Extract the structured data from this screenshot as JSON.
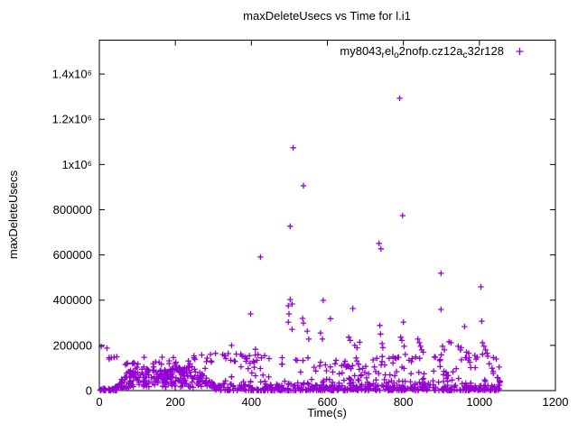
{
  "window": {
    "background": "#ffffff"
  },
  "chart_data": {
    "type": "scatter",
    "title": "maxDeleteUsecs vs Time for l.i1",
    "xlabel": "Time(s)",
    "ylabel": "maxDeleteUsecs",
    "xlim": [
      0,
      1200
    ],
    "ylim": [
      0,
      1550000
    ],
    "grid": false,
    "legend_position": "top-right-inside",
    "marker": "plus",
    "marker_color": "#9400D3",
    "border_color": "#000000",
    "x_ticks": {
      "values": [
        0,
        200,
        400,
        600,
        800,
        1000,
        1200
      ],
      "labels": [
        "0",
        "200",
        "400",
        "600",
        "800",
        "1000",
        "1200"
      ]
    },
    "y_ticks": {
      "values": [
        0,
        200000,
        400000,
        600000,
        800000,
        1000000,
        1200000,
        1400000
      ],
      "labels": [
        "0",
        "200000",
        "400000",
        "600000",
        "800000",
        "1x10⁶",
        "1.2x10⁶",
        "1.4x10⁶"
      ]
    },
    "series": [
      {
        "name": "my8043_rel_o2nofp.cz12a_c32r128",
        "label_segments": [
          {
            "text": "my8043",
            "sub": false
          },
          {
            "text": "r",
            "sub": true
          },
          {
            "text": "el",
            "sub": false
          },
          {
            "text": "o",
            "sub": true
          },
          {
            "text": "2nofp.cz12a",
            "sub": false
          },
          {
            "text": "c",
            "sub": true
          },
          {
            "text": "32r128",
            "sub": false
          }
        ],
        "notable_points": [
          [
            5,
            195000
          ],
          [
            20,
            188000
          ],
          [
            348,
            200000
          ],
          [
            398,
            339000
          ],
          [
            424,
            591000
          ],
          [
            497,
            375000
          ],
          [
            499,
            339000
          ],
          [
            497,
            303000
          ],
          [
            502,
            403000
          ],
          [
            502,
            727000
          ],
          [
            507,
            383000
          ],
          [
            507,
            271000
          ],
          [
            510,
            1074000
          ],
          [
            535,
            319000
          ],
          [
            537,
            299000
          ],
          [
            537,
            906000
          ],
          [
            547,
            263000
          ],
          [
            551,
            228000
          ],
          [
            582,
            255000
          ],
          [
            587,
            228000
          ],
          [
            589,
            399000
          ],
          [
            608,
            318000
          ],
          [
            656,
            236000
          ],
          [
            660,
            222000
          ],
          [
            667,
            363000
          ],
          [
            672,
            200000
          ],
          [
            678,
            189000
          ],
          [
            685,
            214000
          ],
          [
            736,
            651000
          ],
          [
            738,
            288000
          ],
          [
            740,
            250000
          ],
          [
            741,
            627000
          ],
          [
            744,
            208000
          ],
          [
            746,
            190000
          ],
          [
            790,
            1293000
          ],
          [
            793,
            236000
          ],
          [
            796,
            222000
          ],
          [
            798,
            774000
          ],
          [
            800,
            303000
          ],
          [
            802,
            196000
          ],
          [
            805,
            160000
          ],
          [
            838,
            228000
          ],
          [
            842,
            212000
          ],
          [
            845,
            196000
          ],
          [
            848,
            180000
          ],
          [
            852,
            170000
          ],
          [
            899,
            519000
          ],
          [
            899,
            359000
          ],
          [
            903,
            196000
          ],
          [
            908,
            180000
          ],
          [
            920,
            216000
          ],
          [
            925,
            212000
          ],
          [
            944,
            196000
          ],
          [
            950,
            180000
          ],
          [
            952,
            190000
          ],
          [
            961,
            283000
          ],
          [
            966,
            170000
          ],
          [
            972,
            165000
          ],
          [
            1004,
            459000
          ],
          [
            1006,
            307000
          ],
          [
            1008,
            212000
          ],
          [
            1012,
            196000
          ],
          [
            1016,
            180000
          ],
          [
            1020,
            165000
          ],
          [
            1022,
            152000
          ]
        ],
        "point_clusters": [
          {
            "id": "baseline-early",
            "t_range": [
              2,
              48
            ],
            "v_range": [
              500,
              12000
            ],
            "count": 30,
            "dist": "floor"
          },
          {
            "id": "ramp-hump",
            "t_range": [
              40,
              308
            ],
            "v_range": [
              2000,
              135000
            ],
            "count": 260,
            "dist": "hump"
          },
          {
            "id": "hump-cap",
            "t_range": [
              60,
              300
            ],
            "v_range": [
              98000,
              130000
            ],
            "count": 18,
            "dist": "uniform"
          },
          {
            "id": "baseline-main",
            "t_range": [
              305,
              1058
            ],
            "v_range": [
              500,
              24000
            ],
            "count": 380,
            "dist": "floor"
          },
          {
            "id": "low-fuzz",
            "t_range": [
              310,
              1058
            ],
            "v_range": [
              22000,
              42000
            ],
            "count": 55,
            "dist": "uniform"
          },
          {
            "id": "band-early",
            "t_range": [
              25,
              210
            ],
            "v_range": [
              112000,
              150000
            ],
            "count": 15,
            "dist": "uniform"
          },
          {
            "id": "band-main",
            "t_range": [
              212,
              1056
            ],
            "v_range": [
              112000,
              158000
            ],
            "count": 85,
            "dist": "wave"
          },
          {
            "id": "mid-left",
            "t_range": [
              315,
              600
            ],
            "v_range": [
              30000,
              108000
            ],
            "count": 20,
            "dist": "uniform"
          },
          {
            "id": "mid-right",
            "t_range": [
              600,
              1058
            ],
            "v_range": [
              28000,
              112000
            ],
            "count": 75,
            "dist": "uniform"
          },
          {
            "id": "column-400",
            "t_range": [
              383,
              412
            ],
            "v_range": [
              60000,
              186000
            ],
            "count": 9,
            "dist": "uniform"
          }
        ]
      }
    ]
  }
}
